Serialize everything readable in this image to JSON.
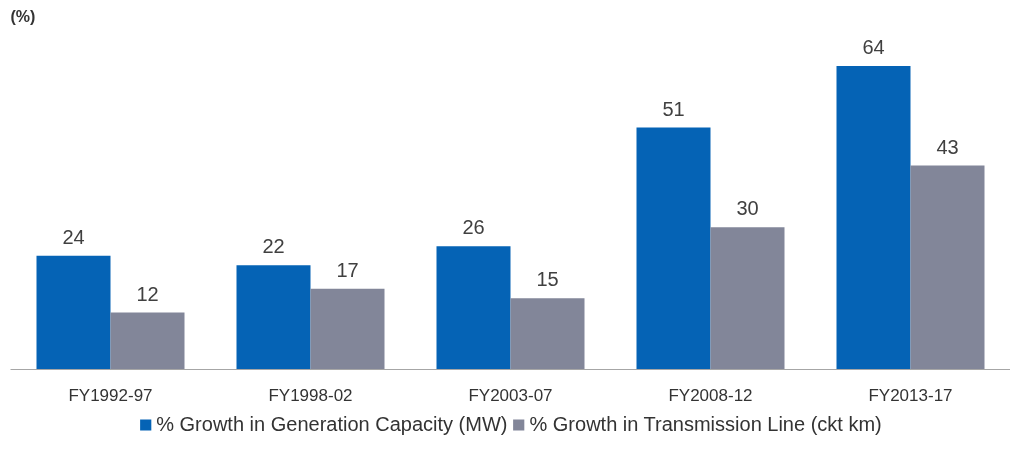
{
  "chart_data": {
    "type": "bar",
    "ylabel": "(%)",
    "categories": [
      "FY1992-97",
      "FY1998-02",
      "FY2003-07",
      "FY2008-12",
      "FY2013-17"
    ],
    "series": [
      {
        "name": "% Growth in Generation Capacity (MW)",
        "color": "#0563b5",
        "values": [
          24,
          22,
          26,
          51,
          64
        ]
      },
      {
        "name": "% Growth in Transmission Line (ckt km)",
        "color": "#828699",
        "values": [
          12,
          17,
          15,
          30,
          43
        ]
      }
    ],
    "tick_labels": "x",
    "data_labels": true,
    "legend": "bottom",
    "grid": false
  }
}
